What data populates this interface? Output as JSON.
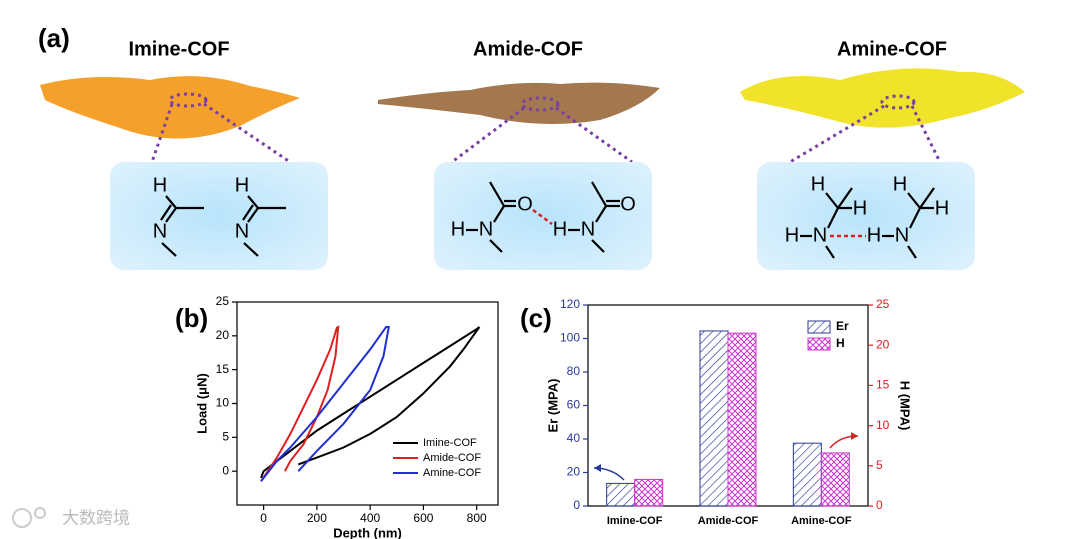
{
  "panel_a": {
    "label": "(a)",
    "structures": [
      {
        "title": "Imine-COF",
        "atoms": [
          "H",
          "N",
          "H",
          "N"
        ]
      },
      {
        "title": "Amide-COF",
        "atoms": [
          "O",
          "H",
          "N",
          "O",
          "H",
          "N"
        ]
      },
      {
        "title": "Amine-COF",
        "atoms": [
          "H",
          "H",
          "H",
          "N",
          "H",
          "H",
          "H",
          "N"
        ]
      }
    ]
  },
  "chart_data": [
    {
      "type": "line",
      "label": "(b)",
      "x_label": "Depth (nm)",
      "y_label": "Load (μN)",
      "xlim": [
        -100,
        880
      ],
      "xticks": [
        0,
        200,
        400,
        600,
        800
      ],
      "ylim": [
        -5,
        25
      ],
      "yticks": [
        0,
        5,
        10,
        15,
        20,
        25
      ],
      "legend": "lower right",
      "series": [
        {
          "name": "Imine-COF",
          "color": "#000000",
          "x": [
            -10,
            0,
            100,
            200,
            300,
            400,
            500,
            600,
            700,
            800,
            810,
            750,
            700,
            600,
            500,
            400,
            300,
            200,
            130
          ],
          "values": [
            -1,
            0,
            3,
            6,
            8.5,
            11,
            13.5,
            16,
            18.5,
            21,
            21.3,
            18,
            15.5,
            11.5,
            8,
            5.5,
            3.5,
            2,
            1
          ]
        },
        {
          "name": "Amide-COF",
          "color": "#e02020",
          "x": [
            -10,
            50,
            100,
            150,
            200,
            250,
            275,
            280,
            270,
            240,
            200,
            150,
            100,
            80
          ],
          "values": [
            -1.5,
            2,
            5.5,
            9.5,
            13.5,
            18,
            21.2,
            21.3,
            17,
            12,
            8,
            4,
            1.5,
            0
          ]
        },
        {
          "name": "Amine-COF",
          "color": "#2030d0",
          "x": [
            -10,
            50,
            100,
            200,
            300,
            400,
            460,
            470,
            450,
            400,
            300,
            200,
            130
          ],
          "values": [
            -1.5,
            1.5,
            3.5,
            8,
            13,
            18,
            21.3,
            21.3,
            17,
            12,
            7,
            3,
            0
          ]
        }
      ]
    },
    {
      "type": "bar",
      "label": "(c)",
      "y_label": "Er (MPA)",
      "y2_label": "H (MPA)",
      "categories": [
        "Imine-COF",
        "Amide-COF",
        "Amine-COF"
      ],
      "ylim": [
        0,
        120
      ],
      "yticks": [
        0,
        20,
        40,
        60,
        80,
        100,
        120
      ],
      "y2lim": [
        0,
        25
      ],
      "y2ticks": [
        0,
        5,
        10,
        15,
        20,
        25
      ],
      "legend": "upper right",
      "series": [
        {
          "name": "Er",
          "color": "#2a3a9a",
          "values": [
            13.5,
            104.5,
            37.5
          ]
        },
        {
          "name": "H",
          "color": "#cc33cc",
          "axis": "y2",
          "values": [
            3.3,
            21.5,
            6.6
          ]
        }
      ]
    }
  ],
  "watermark": "大数跨境"
}
